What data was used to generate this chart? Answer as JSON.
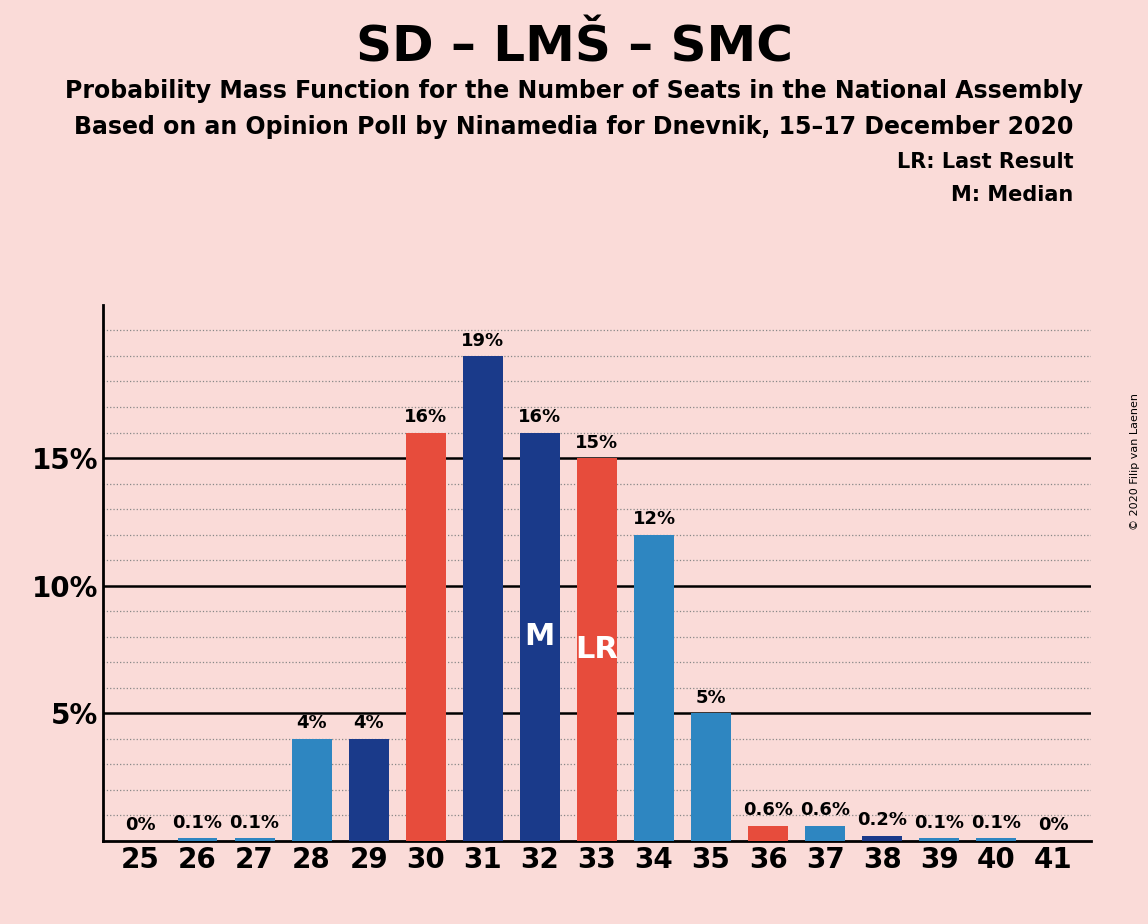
{
  "title": "SD – LMŠ – SMC",
  "subtitle1": "Probability Mass Function for the Number of Seats in the National Assembly",
  "subtitle2": "Based on an Opinion Poll by Ninamedia for Dnevnik, 15–17 December 2020",
  "copyright": "© 2020 Filip van Laenen",
  "legend_lr": "LR: Last Result",
  "legend_m": "M: Median",
  "seats": [
    25,
    26,
    27,
    28,
    29,
    30,
    31,
    32,
    33,
    34,
    35,
    36,
    37,
    38,
    39,
    40,
    41
  ],
  "pmf_values": [
    0.0,
    0.1,
    0.1,
    4.0,
    4.0,
    16.0,
    19.0,
    16.0,
    15.0,
    12.0,
    5.0,
    0.6,
    0.6,
    0.2,
    0.1,
    0.1,
    0.0
  ],
  "pmf_labels": [
    "0%",
    "0.1%",
    "0.1%",
    "4%",
    "4%",
    "16%",
    "19%",
    "16%",
    "15%",
    "12%",
    "5%",
    "0.6%",
    "0.6%",
    "0.2%",
    "0.1%",
    "0.1%",
    "0%"
  ],
  "bar_colors": [
    "#2E86C1",
    "#2E86C1",
    "#2E86C1",
    "#2E86C1",
    "#1A3A8A",
    "#E74C3C",
    "#1A3A8A",
    "#1A3A8A",
    "#E74C3C",
    "#2E86C1",
    "#2E86C1",
    "#E74C3C",
    "#2E86C1",
    "#1A3A8A",
    "#2E86C1",
    "#2E86C1",
    "#2E86C1"
  ],
  "median_seat": 32,
  "lr_seats": [
    30,
    33,
    36
  ],
  "median_label": "M",
  "lr_label": "LR",
  "background_color": "#FADBD8",
  "grid_color": "#888888",
  "ylim_max": 21.0,
  "title_fontsize": 36,
  "subtitle_fontsize": 17,
  "annotation_fontsize": 13,
  "tick_fontsize": 20,
  "legend_fontsize": 15,
  "midbar_label_fontsize": 22,
  "copyright_fontsize": 8
}
